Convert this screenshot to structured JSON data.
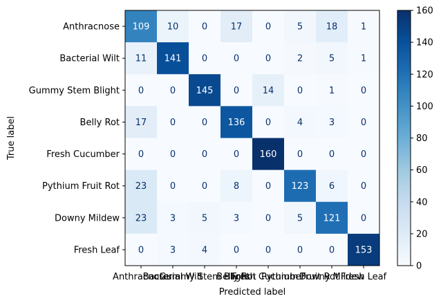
{
  "chart_data": {
    "type": "heatmap",
    "title": "",
    "xlabel": "Predicted label",
    "ylabel": "True label",
    "categories": [
      "Anthracnose",
      "Bacterial Wilt",
      "Gummy Stem Blight",
      "Belly Rot",
      "Fresh Cucumber",
      "Pythium Fruit Rot",
      "Downy Mildew",
      "Fresh Leaf"
    ],
    "matrix": [
      [
        109,
        10,
        0,
        17,
        0,
        5,
        18,
        1
      ],
      [
        11,
        141,
        0,
        0,
        0,
        2,
        5,
        1
      ],
      [
        0,
        0,
        145,
        0,
        14,
        0,
        1,
        0
      ],
      [
        17,
        0,
        0,
        136,
        0,
        4,
        3,
        0
      ],
      [
        0,
        0,
        0,
        0,
        160,
        0,
        0,
        0
      ],
      [
        23,
        0,
        0,
        8,
        0,
        123,
        6,
        0
      ],
      [
        23,
        3,
        5,
        3,
        0,
        5,
        121,
        0
      ],
      [
        0,
        3,
        4,
        0,
        0,
        0,
        0,
        153
      ]
    ],
    "colorbar": {
      "min": 0,
      "max": 160,
      "ticks": [
        0,
        20,
        40,
        60,
        80,
        100,
        120,
        140,
        160
      ],
      "colormap": "Blues"
    },
    "grid": false
  }
}
